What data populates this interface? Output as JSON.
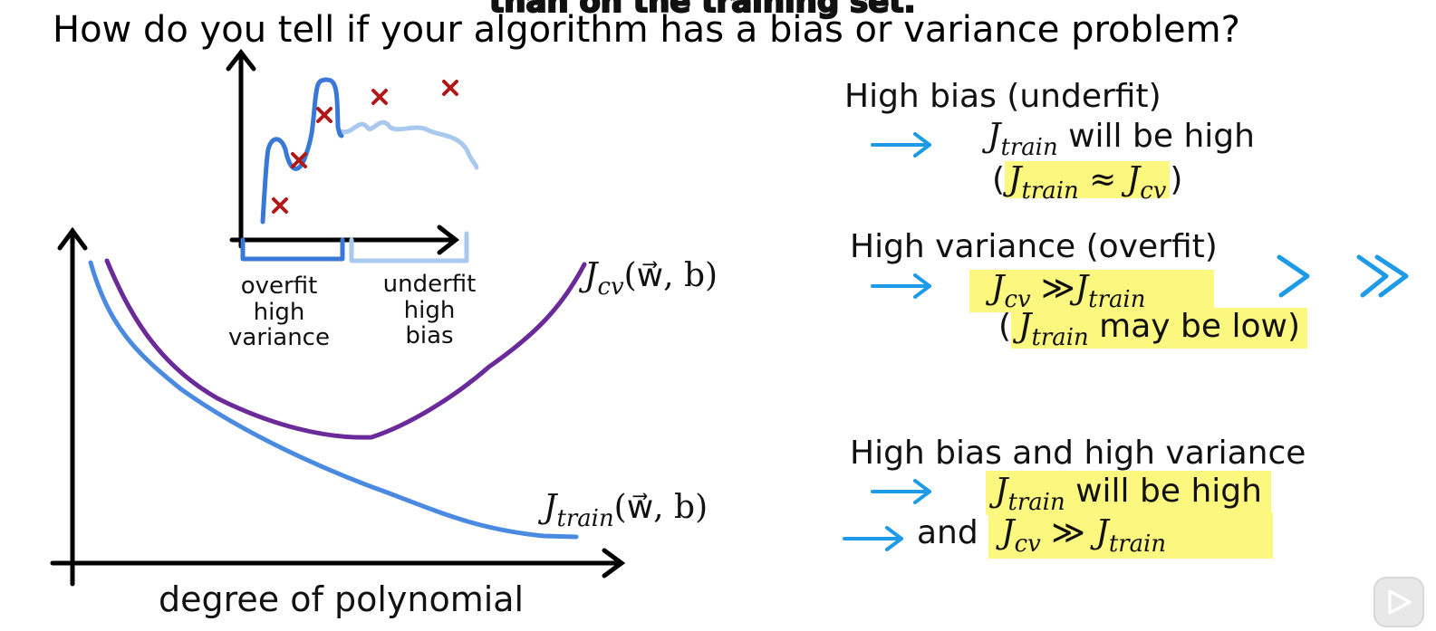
{
  "slide": {
    "subtitle": "than on the training set.",
    "title": "How do you tell if your algorithm has a bias or variance problem?",
    "inset": {
      "left_label": [
        "overfit",
        "high",
        "variance"
      ],
      "right_label": [
        "underfit",
        "high",
        "bias"
      ]
    },
    "plot": {
      "xlabel": "degree of polynomial",
      "cv_label": "J",
      "cv_sub": "cv",
      "cv_args": "(w⃗, b)",
      "train_label": "J",
      "train_sub": "train",
      "train_args": "(w⃗, b)"
    },
    "right": {
      "bias_heading": "High bias (underfit)",
      "bias_line1_text": "will be high",
      "bias_line2_open": "(",
      "bias_line2_mid": "≈",
      "bias_line2_close": ")",
      "variance_heading": "High variance (overfit)",
      "variance_line1_mid": "≫",
      "variance_line2_open": "(",
      "variance_line2_text": "may be low)",
      "both_heading": "High bias and high variance",
      "both_line1_text": "will be high",
      "both_line2_and": "and",
      "both_line2_mid": "≫",
      "sym_J": "J",
      "sym_train": "train",
      "sym_cv": "cv"
    }
  },
  "colors": {
    "axis": "#000000",
    "train_curve": "#4a8ae0",
    "cv_curve": "#6a2a9a",
    "arrow": "#1e9be8",
    "cross": "#b01818",
    "highlight": "#fbf77f",
    "inset_dark": "#3a78d8",
    "inset_light": "#a9c8ee"
  },
  "icons": [
    "play-icon",
    "right-arrow-icon",
    "chevron-right-icon",
    "double-chevron-right-icon",
    "cross-marker-icon"
  ]
}
